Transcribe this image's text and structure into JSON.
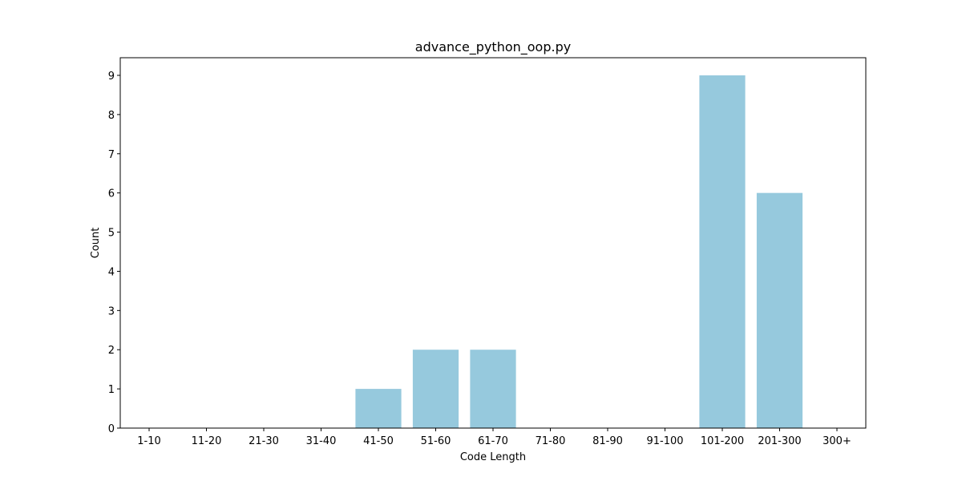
{
  "chart_data": {
    "type": "bar",
    "title": "advance_python_oop.py",
    "xlabel": "Code Length",
    "ylabel": "Count",
    "categories": [
      "1-10",
      "11-20",
      "21-30",
      "31-40",
      "41-50",
      "51-60",
      "61-70",
      "71-80",
      "81-90",
      "91-100",
      "101-200",
      "201-300",
      "300+"
    ],
    "values": [
      0,
      0,
      0,
      0,
      1,
      2,
      2,
      0,
      0,
      0,
      9,
      6,
      0
    ],
    "ylim": [
      0,
      9.45
    ],
    "yticks": [
      0,
      1,
      2,
      3,
      4,
      5,
      6,
      7,
      8,
      9
    ],
    "bar_color": "#96c9dd",
    "grid": false,
    "legend": "none"
  }
}
